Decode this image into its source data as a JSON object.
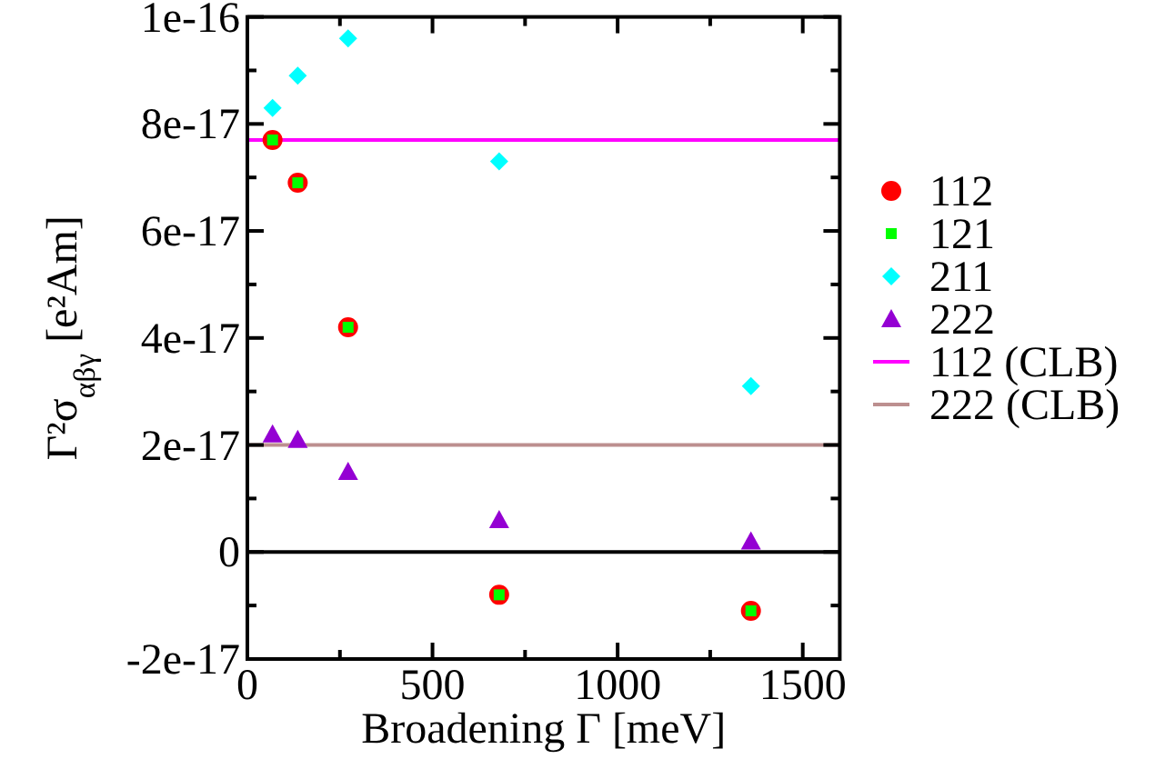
{
  "chart_data": {
    "type": "scatter",
    "xlabel": "Broadening Γ [meV]",
    "ylabel": "Γ²σ$_{αβγ}$ [e²Am]",
    "x": [
      68,
      136,
      272,
      680,
      1360
    ],
    "xlim": [
      0,
      1600
    ],
    "xticks": [
      0,
      {
        "value": 250,
        "label": null
      },
      500,
      {
        "value": 750,
        "label": null
      },
      1000,
      {
        "value": 1250,
        "label": null
      },
      1500
    ],
    "ylim": [
      -2e-17,
      1e-16
    ],
    "yticks": [
      {
        "value": -2e-17,
        "label": "-2e-17"
      },
      {
        "value": -1e-17,
        "label": null
      },
      0,
      {
        "value": 1e-17,
        "label": null
      },
      {
        "value": 2e-17,
        "label": "2e-17"
      },
      {
        "value": 3e-17,
        "label": null
      },
      {
        "value": 4e-17,
        "label": "4e-17"
      },
      {
        "value": 5e-17,
        "label": null
      },
      {
        "value": 6e-17,
        "label": "6e-17"
      },
      {
        "value": 7e-17,
        "label": null
      },
      {
        "value": 8e-17,
        "label": "8e-17"
      },
      {
        "value": 9e-17,
        "label": null
      },
      {
        "value": 1e-16,
        "label": "1e-16"
      }
    ],
    "series": [
      {
        "name": "112",
        "color": "#ff0000",
        "marker": "circle",
        "values": [
          7.7e-17,
          6.9e-17,
          4.2e-17,
          -8e-18,
          -1.1e-17
        ]
      },
      {
        "name": "121",
        "color": "#00ff00",
        "marker": "square",
        "values": [
          7.7e-17,
          6.9e-17,
          4.2e-17,
          -8e-18,
          -1.1e-17
        ]
      },
      {
        "name": "211",
        "color": "#00ffff",
        "marker": "diamond",
        "values": [
          8.3e-17,
          8.9e-17,
          9.6e-17,
          7.3e-17,
          3.1e-17
        ]
      },
      {
        "name": "222",
        "color": "#9400d3",
        "marker": "triangle",
        "values": [
          2.2e-17,
          2.1e-17,
          1.5e-17,
          6e-18,
          2e-18
        ]
      }
    ],
    "ref_lines": [
      {
        "axis": "y",
        "value": 0,
        "color": "#000000"
      },
      {
        "axis": "y",
        "value": 7.7e-17,
        "label": "112 (CLB)",
        "color": "#ff00ff"
      },
      {
        "axis": "y",
        "value": 2e-17,
        "label": "222 (CLB)",
        "color": "#bc8f8f"
      }
    ],
    "legend": "right",
    "grid": false
  }
}
